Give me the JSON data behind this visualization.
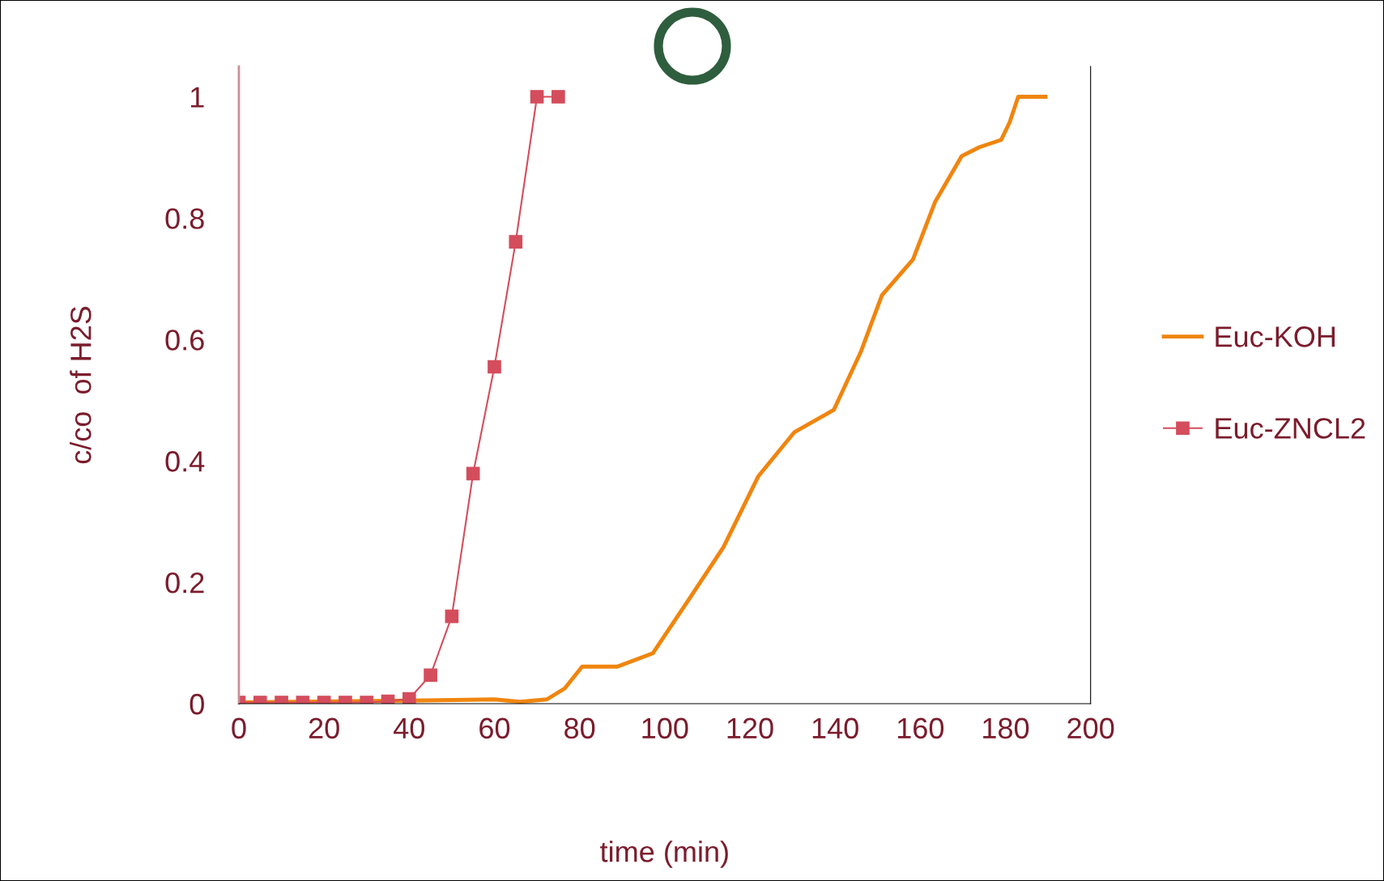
{
  "chart_data": {
    "type": "line",
    "xlabel": "time (min)",
    "ylabel": "c/co  of H2S",
    "xlim": [
      0,
      200
    ],
    "xticks": [
      0,
      20,
      40,
      60,
      80,
      100,
      120,
      140,
      160,
      180,
      200
    ],
    "ylim": [
      0,
      1.05
    ],
    "yticks": [
      0,
      0.2,
      0.4,
      0.6,
      0.8,
      1
    ],
    "grid": false,
    "legend": "right",
    "line_style": "solid",
    "series": [
      {
        "name": "Euc-KOH",
        "color": "#f0850f",
        "marker": "none",
        "x": [
          0,
          40,
          60,
          66,
          72.3,
          76.5,
          80.6,
          88.9,
          97.2,
          105.5,
          113.8,
          122,
          130.4,
          139.7,
          146,
          151,
          158.3,
          163.5,
          169.7,
          173.9,
          179,
          181,
          183,
          189.4
        ],
        "values": [
          0.002,
          0.005,
          0.007,
          0.003,
          0.007,
          0.025,
          0.061,
          0.061,
          0.083,
          0.17,
          0.258,
          0.375,
          0.447,
          0.484,
          0.579,
          0.673,
          0.732,
          0.827,
          0.902,
          0.917,
          0.929,
          0.958,
          1.0,
          1.0
        ]
      },
      {
        "name": "Euc-ZNCL2",
        "color": "#d44d5c",
        "marker": "square",
        "x": [
          0,
          5,
          10,
          15,
          20,
          25,
          30,
          35,
          40,
          45,
          50,
          55,
          60,
          65,
          70,
          75
        ],
        "values": [
          0.002,
          0.002,
          0.002,
          0.002,
          0.002,
          0.002,
          0.002,
          0.004,
          0.008,
          0.047,
          0.144,
          0.379,
          0.555,
          0.761,
          1.0,
          1.0
        ]
      }
    ]
  }
}
